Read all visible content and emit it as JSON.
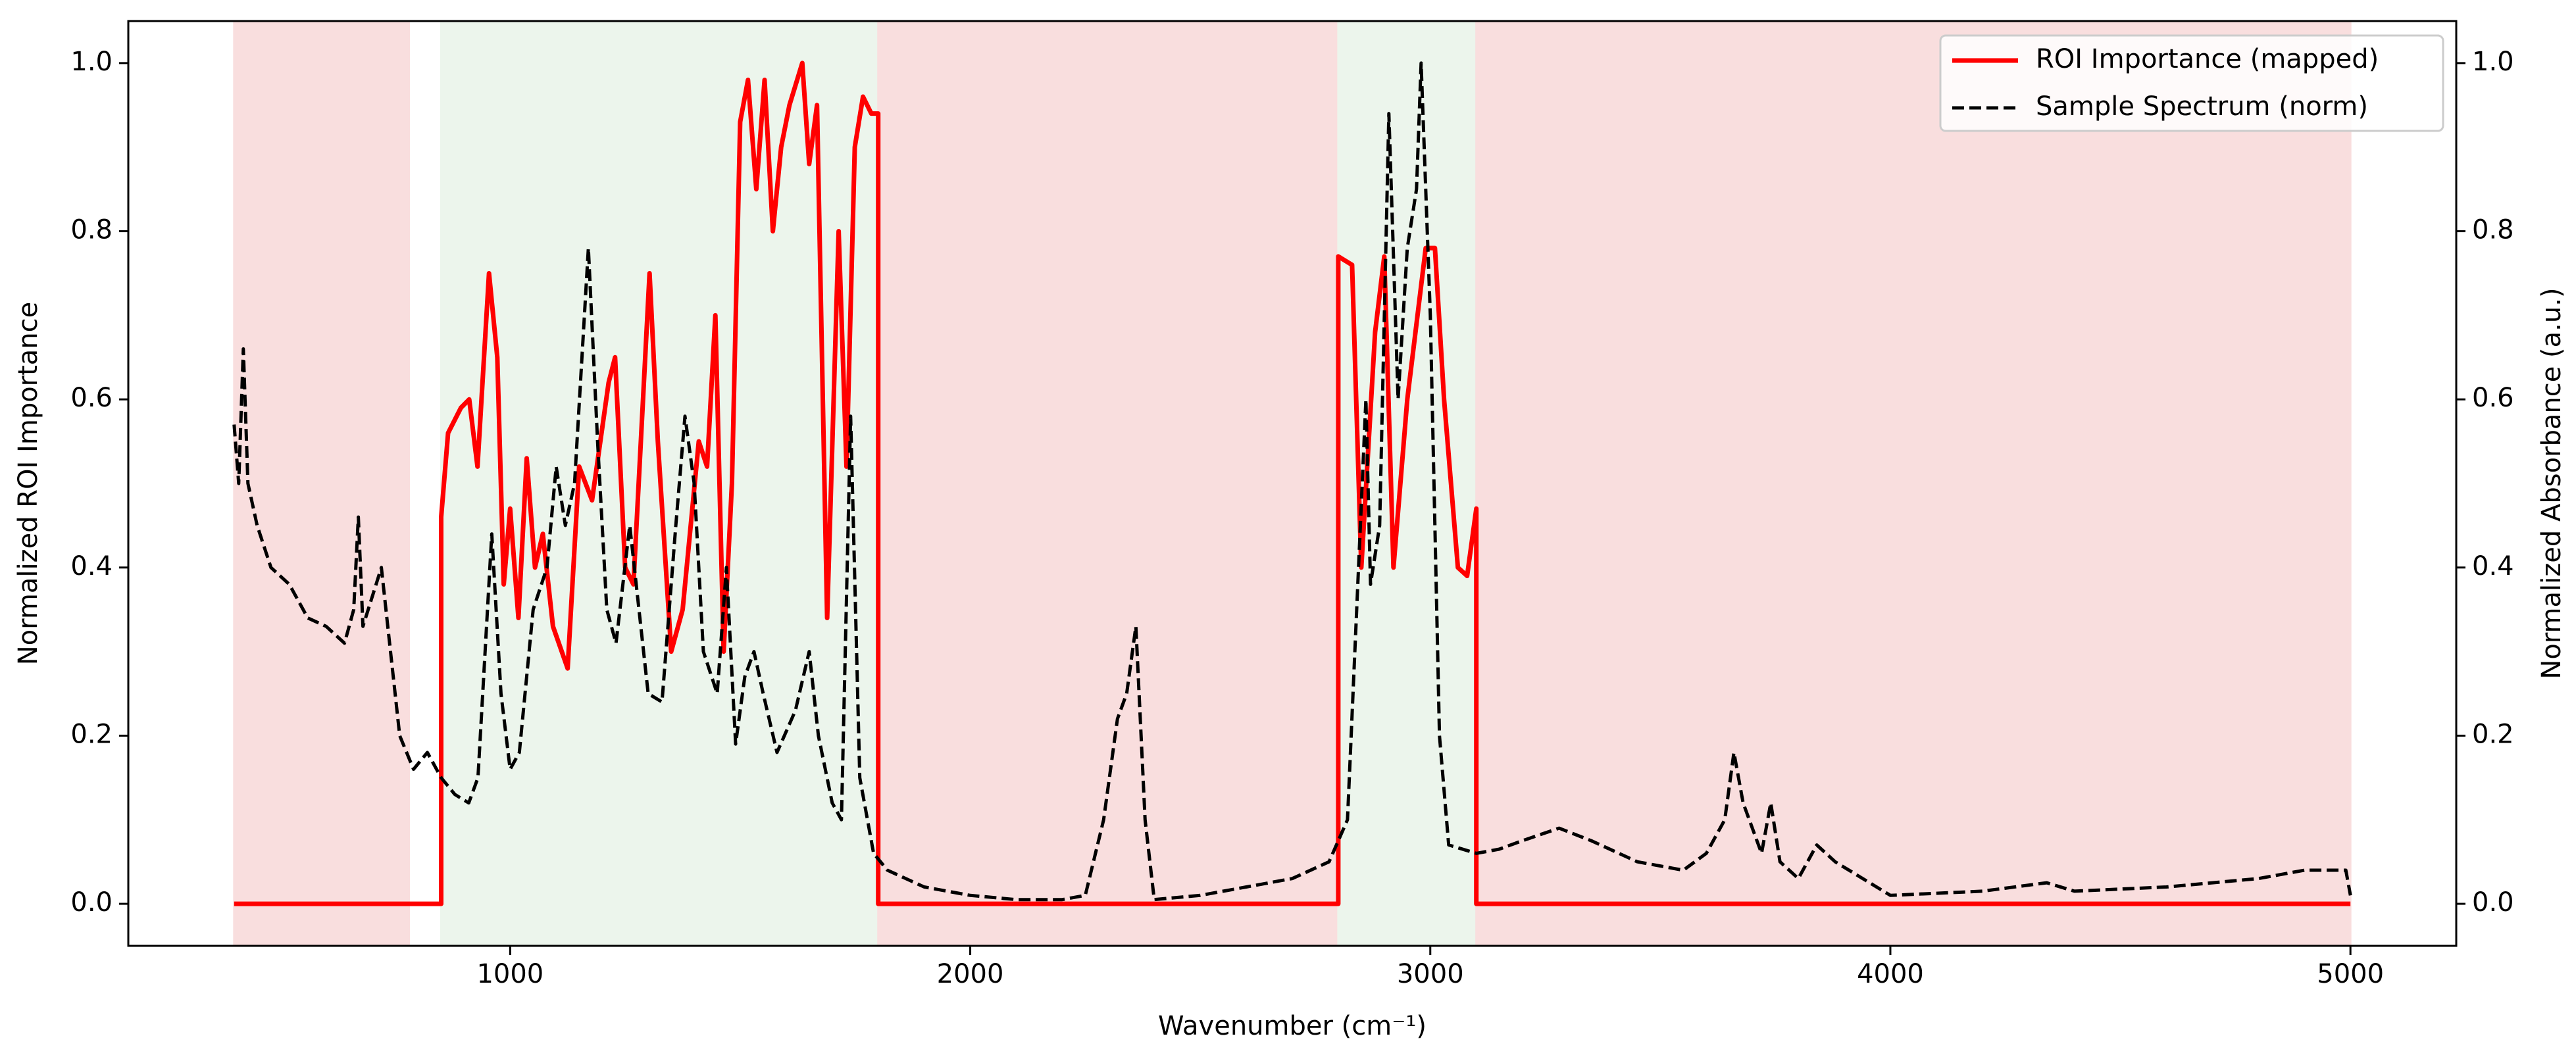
{
  "chart_data": {
    "type": "line",
    "xlabel": "Wavenumber (cm⁻¹)",
    "ylabel": "Normalized ROI Importance",
    "y2label": "Normalized Absorbance (a.u.)",
    "xlim": [
      170,
      5230
    ],
    "xticks": [
      1000,
      2000,
      3000,
      4000,
      5000
    ],
    "ylim": [
      -0.05,
      1.05
    ],
    "yticks": [
      {
        "value": 0,
        "label": "0.0"
      },
      {
        "value": 0.2,
        "label": "0.2"
      },
      {
        "value": 0.4,
        "label": "0.4"
      },
      {
        "value": 0.6,
        "label": "0.6"
      },
      {
        "value": 0.8,
        "label": "0.8"
      },
      {
        "value": 1,
        "label": "1.0"
      }
    ],
    "y2lim": [
      -0.05,
      1.05
    ],
    "y2ticks": [
      {
        "value": 0,
        "label": "0.0"
      },
      {
        "value": 0.2,
        "label": "0.2"
      },
      {
        "value": 0.4,
        "label": "0.4"
      },
      {
        "value": 0.6,
        "label": "0.6"
      },
      {
        "value": 0.8,
        "label": "0.8"
      },
      {
        "value": 1,
        "label": "1.0"
      }
    ],
    "legend": "upper right",
    "shaded_regions": [
      {
        "start": 400,
        "end": 780,
        "color": "#f9dede"
      },
      {
        "start": 850,
        "end": 1800,
        "color": "#ecf5ec"
      },
      {
        "start": 1800,
        "end": 2800,
        "color": "#f9dede"
      },
      {
        "start": 2800,
        "end": 3100,
        "color": "#ecf5ec"
      },
      {
        "start": 3100,
        "end": 5000,
        "color": "#f9dede"
      }
    ],
    "series": [
      {
        "name": "ROI Importance (mapped)",
        "color": "#ff0000",
        "linestyle": "solid",
        "x": [
          400,
          850,
          850,
          865,
          893,
          911,
          929,
          954,
          972,
          986,
          1000,
          1018,
          1036,
          1054,
          1071,
          1093,
          1125,
          1150,
          1178,
          1214,
          1228,
          1250,
          1268,
          1303,
          1321,
          1350,
          1375,
          1410,
          1428,
          1446,
          1464,
          1482,
          1500,
          1517,
          1535,
          1553,
          1571,
          1589,
          1607,
          1635,
          1650,
          1667,
          1689,
          1714,
          1731,
          1749,
          1767,
          1785,
          1800,
          1800,
          2800,
          2800,
          2830,
          2850,
          2880,
          2900,
          2920,
          2950,
          2990,
          3010,
          3030,
          3060,
          3080,
          3100,
          3100,
          5000
        ],
        "values": [
          0,
          0,
          0.46,
          0.56,
          0.59,
          0.6,
          0.52,
          0.75,
          0.65,
          0.38,
          0.47,
          0.34,
          0.53,
          0.4,
          0.44,
          0.33,
          0.28,
          0.52,
          0.48,
          0.62,
          0.65,
          0.4,
          0.38,
          0.75,
          0.55,
          0.3,
          0.35,
          0.55,
          0.52,
          0.7,
          0.3,
          0.5,
          0.93,
          0.98,
          0.85,
          0.98,
          0.8,
          0.9,
          0.95,
          1.0,
          0.88,
          0.95,
          0.34,
          0.8,
          0.52,
          0.9,
          0.96,
          0.94,
          0.94,
          0,
          0,
          0.77,
          0.76,
          0.4,
          0.68,
          0.77,
          0.4,
          0.6,
          0.78,
          0.78,
          0.6,
          0.4,
          0.39,
          0.47,
          0,
          0
        ]
      },
      {
        "name": "Sample Spectrum (norm)",
        "color": "#000000",
        "linestyle": "dashed",
        "axis": "y2",
        "x": [
          400,
          410,
          420,
          430,
          450,
          480,
          520,
          560,
          600,
          640,
          660,
          670,
          680,
          720,
          740,
          760,
          790,
          820,
          850,
          880,
          910,
          930,
          960,
          980,
          1000,
          1020,
          1050,
          1080,
          1100,
          1120,
          1140,
          1170,
          1190,
          1210,
          1230,
          1260,
          1280,
          1300,
          1330,
          1360,
          1380,
          1400,
          1420,
          1450,
          1470,
          1490,
          1510,
          1530,
          1550,
          1580,
          1620,
          1650,
          1670,
          1700,
          1720,
          1740,
          1760,
          1790,
          1820,
          1900,
          2000,
          2100,
          2200,
          2250,
          2290,
          2320,
          2340,
          2360,
          2380,
          2400,
          2500,
          2600,
          2700,
          2780,
          2820,
          2840,
          2860,
          2870,
          2890,
          2910,
          2930,
          2950,
          2970,
          2980,
          3000,
          3020,
          3040,
          3100,
          3150,
          3200,
          3280,
          3350,
          3450,
          3550,
          3600,
          3640,
          3660,
          3680,
          3720,
          3740,
          3760,
          3800,
          3840,
          3880,
          3940,
          4000,
          4200,
          4340,
          4400,
          4600,
          4800,
          4900,
          4990,
          5000
        ],
        "values": [
          0.57,
          0.5,
          0.66,
          0.5,
          0.45,
          0.4,
          0.38,
          0.34,
          0.33,
          0.31,
          0.35,
          0.46,
          0.33,
          0.4,
          0.3,
          0.2,
          0.16,
          0.18,
          0.15,
          0.13,
          0.12,
          0.15,
          0.44,
          0.25,
          0.16,
          0.18,
          0.35,
          0.4,
          0.52,
          0.45,
          0.5,
          0.78,
          0.55,
          0.35,
          0.31,
          0.45,
          0.35,
          0.25,
          0.24,
          0.45,
          0.58,
          0.5,
          0.3,
          0.25,
          0.4,
          0.19,
          0.27,
          0.3,
          0.25,
          0.18,
          0.23,
          0.3,
          0.2,
          0.12,
          0.1,
          0.58,
          0.15,
          0.06,
          0.04,
          0.02,
          0.01,
          0.005,
          0.005,
          0.01,
          0.1,
          0.22,
          0.25,
          0.33,
          0.1,
          0.005,
          0.01,
          0.02,
          0.03,
          0.05,
          0.1,
          0.35,
          0.6,
          0.38,
          0.45,
          0.94,
          0.6,
          0.78,
          0.85,
          1.0,
          0.7,
          0.2,
          0.07,
          0.06,
          0.065,
          0.075,
          0.09,
          0.075,
          0.05,
          0.04,
          0.06,
          0.1,
          0.18,
          0.12,
          0.06,
          0.12,
          0.05,
          0.03,
          0.07,
          0.05,
          0.03,
          0.01,
          0.015,
          0.025,
          0.015,
          0.02,
          0.03,
          0.04,
          0.04,
          0.01
        ]
      }
    ]
  }
}
